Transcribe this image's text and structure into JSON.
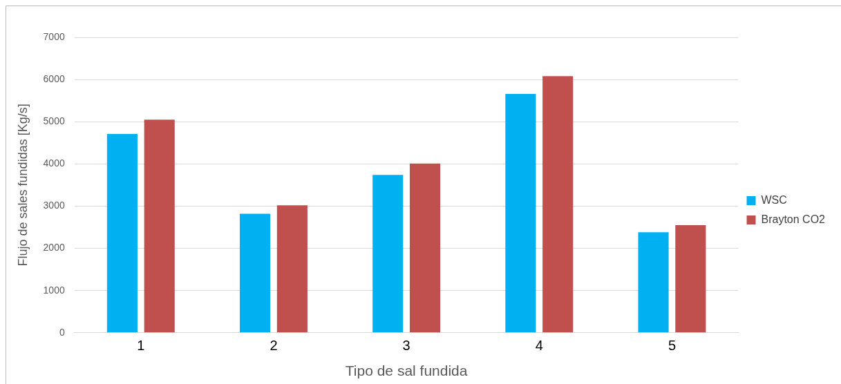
{
  "chart_data": {
    "type": "bar",
    "xlabel": "Tipo de sal fundida",
    "ylabel": "Flujo de sales fundidas [Kg/s]",
    "categories": [
      "1",
      "2",
      "3",
      "4",
      "5"
    ],
    "series": [
      {
        "name": "WSC",
        "color": "#00b0f0",
        "values": [
          4710,
          2820,
          3740,
          5660,
          2380
        ]
      },
      {
        "name": "Brayton CO2",
        "color": "#c0504d",
        "values": [
          5050,
          3020,
          4010,
          6080,
          2550
        ]
      }
    ],
    "ylim": [
      0,
      7000
    ],
    "yticks": [
      0,
      1000,
      2000,
      3000,
      4000,
      5000,
      6000,
      7000
    ],
    "grid": "y",
    "legend": "right"
  }
}
